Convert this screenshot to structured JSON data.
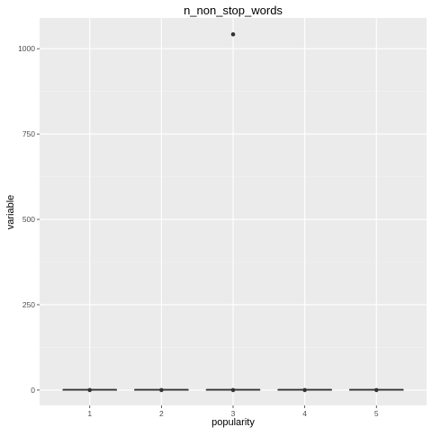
{
  "chart_data": {
    "type": "boxplot",
    "title": "n_non_stop_words",
    "xlabel": "popularity",
    "ylabel": "variable",
    "categories": [
      "1",
      "2",
      "3",
      "4",
      "5"
    ],
    "ylim": [
      -45,
      1090
    ],
    "y_ticks": [
      0,
      250,
      500,
      750,
      1000
    ],
    "y_tick_labels": [
      "0",
      "250",
      "500",
      "750",
      "1000"
    ],
    "boxes": [
      {
        "category": "1",
        "min": 0,
        "q1": 1,
        "median": 1,
        "q3": 1,
        "max": 1,
        "outliers": [
          0
        ]
      },
      {
        "category": "2",
        "min": 0,
        "q1": 1,
        "median": 1,
        "q3": 1,
        "max": 1,
        "outliers": [
          0
        ]
      },
      {
        "category": "3",
        "min": 0,
        "q1": 1,
        "median": 1,
        "q3": 1,
        "max": 1,
        "outliers": [
          0,
          1042
        ]
      },
      {
        "category": "4",
        "min": 0,
        "q1": 1,
        "median": 1,
        "q3": 1,
        "max": 1,
        "outliers": [
          0
        ]
      },
      {
        "category": "5",
        "min": 0,
        "q1": 1,
        "median": 1,
        "q3": 1,
        "max": 1,
        "outliers": [
          0
        ]
      }
    ],
    "grid": true,
    "legend": "none",
    "colors": {
      "panel_background": "#ebebeb",
      "grid_major": "#ffffff",
      "grid_minor": "#f2f2f2",
      "box_line": "#333333",
      "box_fill": "#ffffff",
      "outlier": "#333333",
      "axis_text": "#4d4d4d",
      "title_text": "#000000"
    }
  }
}
